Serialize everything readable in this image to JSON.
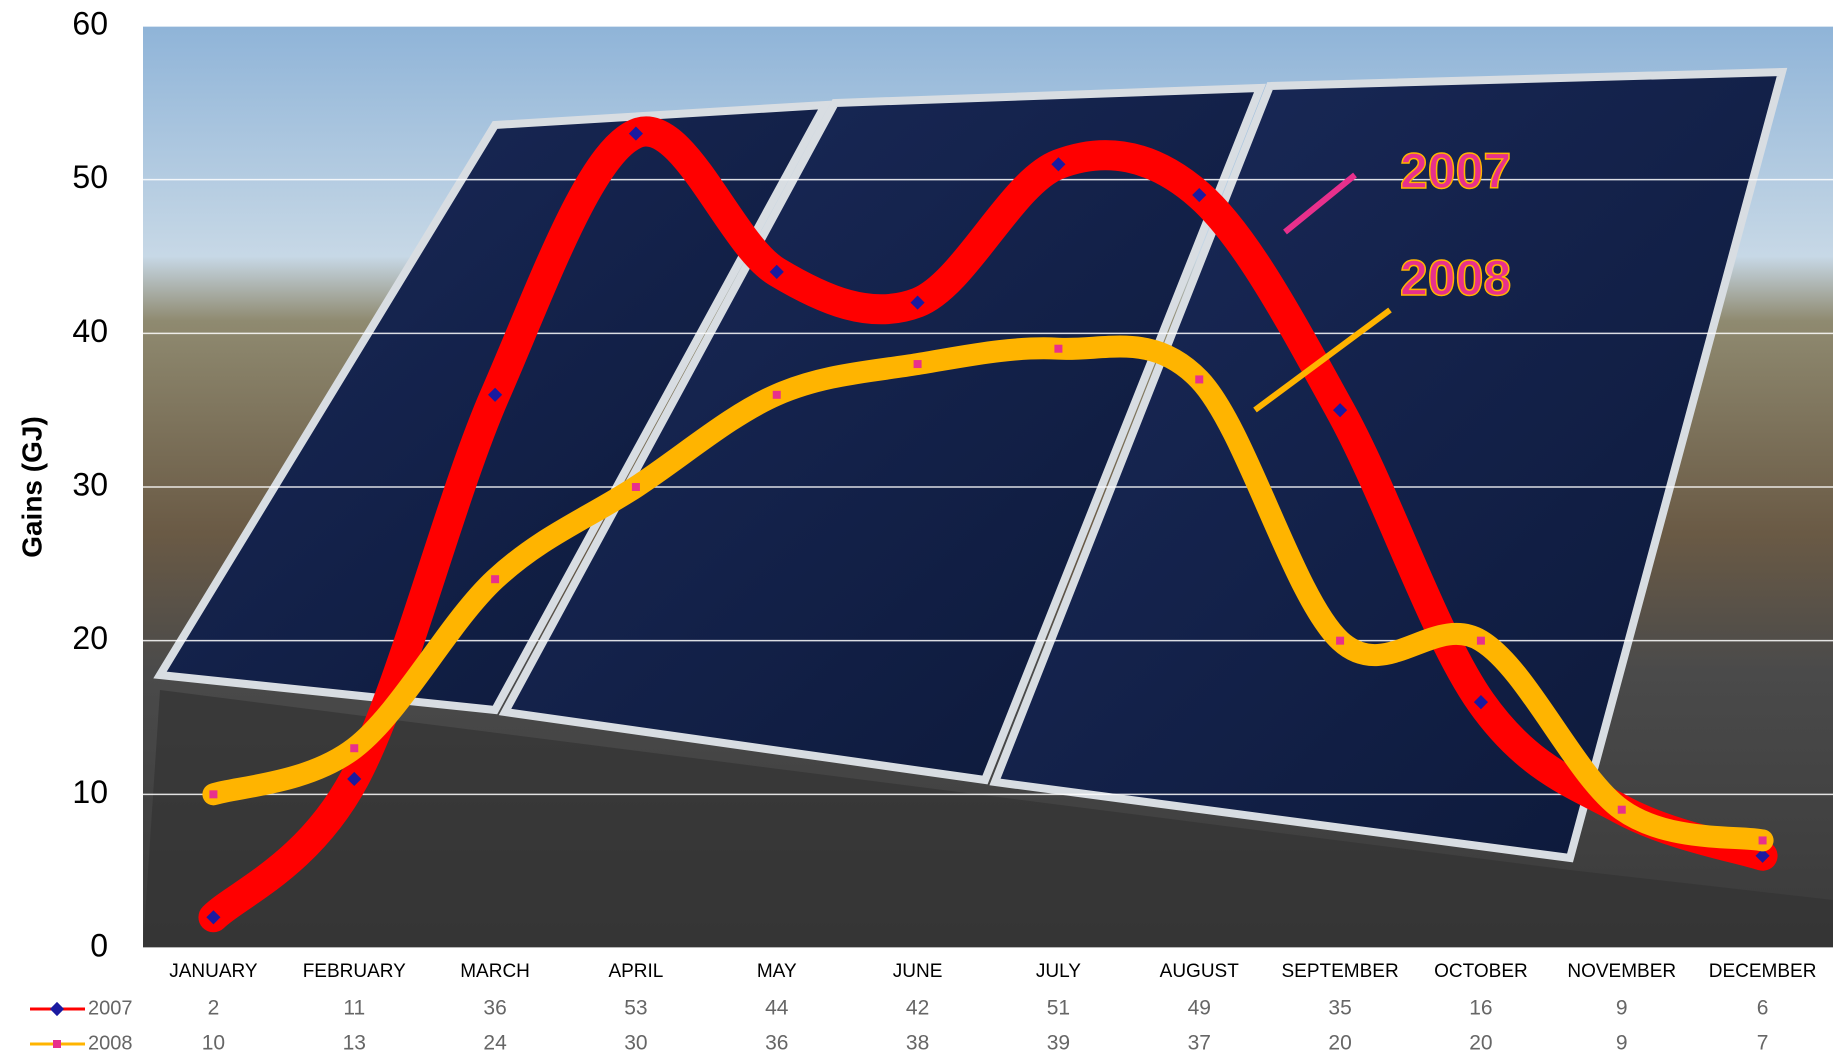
{
  "chart_data": {
    "type": "line",
    "y_label": "Gains (GJ)",
    "categories": [
      "JANUARY",
      "FEBRUARY",
      "MARCH",
      "APRIL",
      "MAY",
      "JUNE",
      "JULY",
      "AUGUST",
      "SEPTEMBER",
      "OCTOBER",
      "NOVEMBER",
      "DECEMBER"
    ],
    "series": [
      {
        "name": "2007",
        "color": "#ff0000",
        "marker_color": "#1a1aa0",
        "values": [
          2,
          11,
          36,
          53,
          44,
          42,
          51,
          49,
          35,
          16,
          9,
          6
        ]
      },
      {
        "name": "2008",
        "color": "#ffb400",
        "marker_color": "#e8308c",
        "values": [
          10,
          13,
          24,
          30,
          36,
          38,
          39,
          37,
          20,
          20,
          9,
          7
        ]
      }
    ],
    "ylim": [
      0,
      60
    ],
    "yticks": [
      0,
      10,
      20,
      30,
      40,
      50,
      60
    ],
    "grid": true
  }
}
